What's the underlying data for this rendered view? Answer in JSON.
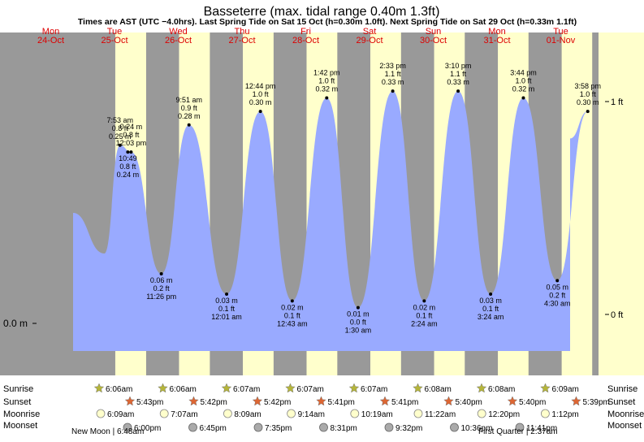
{
  "title": "Basseterre (max. tidal range 0.40m 1.3ft)",
  "subtitle": "Times are AST (UTC −4.0hrs). Last Spring Tide on Sat 15 Oct (h=0.30m 1.0ft). Next Spring Tide on Sat 29 Oct (h=0.33m 1.1ft)",
  "colors": {
    "day": "#ffffcc",
    "night": "#999999",
    "tide": "#99aaff",
    "header": "#dd0000",
    "sun": "#b5b53a",
    "sunset": "#dd6633",
    "moonrise": "#ffffcc",
    "moonset": "#aaaaaa"
  },
  "days": [
    {
      "dow": "Mon",
      "date": "24-Oct"
    },
    {
      "dow": "Tue",
      "date": "25-Oct"
    },
    {
      "dow": "Wed",
      "date": "26-Oct"
    },
    {
      "dow": "Thu",
      "date": "27-Oct"
    },
    {
      "dow": "Fri",
      "date": "28-Oct"
    },
    {
      "dow": "Sat",
      "date": "29-Oct"
    },
    {
      "dow": "Sun",
      "date": "30-Oct"
    },
    {
      "dow": "Mon",
      "date": "31-Oct"
    },
    {
      "dow": "Tue",
      "date": "01-Nov"
    }
  ],
  "axis": {
    "left_label": "0.0 m",
    "right_labels": [
      "1 ft",
      "0 ft"
    ]
  },
  "chart_data": {
    "type": "area",
    "title": "Basseterre (max. tidal range 0.40m 1.3ft)",
    "x_unit": "datetime",
    "y_unit": "m",
    "extremes": [
      {
        "t": "2022-10-25 07:53",
        "h": 0.25,
        "lines": [
          "7:53 am",
          "0.8 ft",
          "0.25 m"
        ],
        "kind": "high"
      },
      {
        "t": "2022-10-25 10:49",
        "h": 0.24,
        "lines": [
          "10:49",
          "0.8 ft",
          "0.24 m"
        ],
        "kind": "low"
      },
      {
        "t": "2022-10-25 12:03",
        "h": 0.24,
        "lines": [
          "0.24 m",
          "0.8 ft",
          "12:03 pm"
        ],
        "kind": "high"
      },
      {
        "t": "2022-10-25 23:26",
        "h": 0.06,
        "lines": [
          "0.06 m",
          "0.2 ft",
          "11:26 pm"
        ],
        "kind": "low"
      },
      {
        "t": "2022-10-26 09:51",
        "h": 0.28,
        "lines": [
          "9:51 am",
          "0.9 ft",
          "0.28 m"
        ],
        "kind": "high"
      },
      {
        "t": "2022-10-27 00:01",
        "h": 0.03,
        "lines": [
          "0.03 m",
          "0.1 ft",
          "12:01 am"
        ],
        "kind": "low"
      },
      {
        "t": "2022-10-27 12:44",
        "h": 0.3,
        "lines": [
          "12:44 pm",
          "1.0 ft",
          "0.30 m"
        ],
        "kind": "high"
      },
      {
        "t": "2022-10-28 00:43",
        "h": 0.02,
        "lines": [
          "0.02 m",
          "0.1 ft",
          "12:43 am"
        ],
        "kind": "low"
      },
      {
        "t": "2022-10-28 13:42",
        "h": 0.32,
        "lines": [
          "1:42 pm",
          "1.0 ft",
          "0.32 m"
        ],
        "kind": "high"
      },
      {
        "t": "2022-10-29 01:30",
        "h": 0.01,
        "lines": [
          "0.01 m",
          "0.0 ft",
          "1:30 am"
        ],
        "kind": "low"
      },
      {
        "t": "2022-10-29 14:33",
        "h": 0.33,
        "lines": [
          "2:33 pm",
          "1.1 ft",
          "0.33 m"
        ],
        "kind": "high"
      },
      {
        "t": "2022-10-30 02:24",
        "h": 0.02,
        "lines": [
          "0.02 m",
          "0.1 ft",
          "2:24 am"
        ],
        "kind": "low"
      },
      {
        "t": "2022-10-30 15:10",
        "h": 0.33,
        "lines": [
          "3:10 pm",
          "1.1 ft",
          "0.33 m"
        ],
        "kind": "high"
      },
      {
        "t": "2022-10-31 03:24",
        "h": 0.03,
        "lines": [
          "0.03 m",
          "0.1 ft",
          "3:24 am"
        ],
        "kind": "low"
      },
      {
        "t": "2022-10-31 15:44",
        "h": 0.32,
        "lines": [
          "3:44 pm",
          "1.0 ft",
          "0.32 m"
        ],
        "kind": "high"
      },
      {
        "t": "2022-11-01 04:30",
        "h": 0.05,
        "lines": [
          "0.05 m",
          "0.2 ft",
          "4:30 am"
        ],
        "kind": "low"
      },
      {
        "t": "2022-11-01 15:58",
        "h": 0.3,
        "lines": [
          "3:58 pm",
          "1.0 ft",
          "0.30 m"
        ],
        "kind": "high"
      }
    ]
  },
  "events": {
    "row_labels": [
      "Sunrise",
      "Sunset",
      "Moonrise",
      "Moonset"
    ],
    "sunrise": [
      "6:06am",
      "6:06am",
      "6:07am",
      "6:07am",
      "6:07am",
      "6:08am",
      "6:08am",
      "6:09am"
    ],
    "sunset": [
      "5:43pm",
      "5:42pm",
      "5:42pm",
      "5:41pm",
      "5:41pm",
      "5:40pm",
      "5:40pm",
      "5:39pm"
    ],
    "moonrise": [
      "6:09am",
      "7:07am",
      "8:09am",
      "9:14am",
      "10:19am",
      "11:22am",
      "12:20pm",
      "1:12pm"
    ],
    "moonset": [
      "6:00pm",
      "6:45pm",
      "7:35pm",
      "8:31pm",
      "9:32pm",
      "10:36pm",
      "11:41pm"
    ],
    "new_moon": "New Moon | 6:48am",
    "first_quarter": "First Quarter | 2:37am"
  }
}
